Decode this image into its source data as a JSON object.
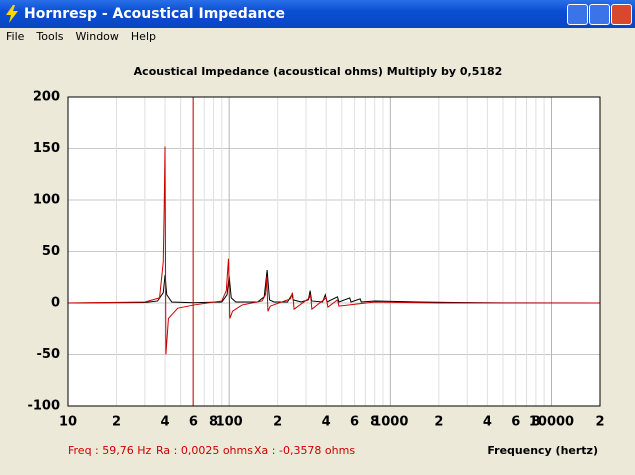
{
  "window": {
    "title": "Hornresp - Acoustical Impedance",
    "menu": [
      "File",
      "Tools",
      "Window",
      "Help"
    ]
  },
  "chart_data": {
    "type": "line",
    "title": "Acoustical Impedance (acoustical ohms)   Multiply by 0,5182",
    "xlabel": "Frequency (hertz)",
    "xscale": "log",
    "xlim": [
      10,
      20000
    ],
    "ylim": [
      -100,
      200
    ],
    "xticks": [
      10,
      {
        "value": 20,
        "label": "2"
      },
      {
        "value": 40,
        "label": "4"
      },
      {
        "value": 60,
        "label": "6"
      },
      {
        "value": 80,
        "label": "8"
      },
      100,
      {
        "value": 200,
        "label": "2"
      },
      {
        "value": 400,
        "label": "4"
      },
      {
        "value": 600,
        "label": "6"
      },
      {
        "value": 800,
        "label": "8"
      },
      1000,
      {
        "value": 2000,
        "label": "2"
      },
      {
        "value": 4000,
        "label": "4"
      },
      {
        "value": 6000,
        "label": "6"
      },
      {
        "value": 8000,
        "label": "8"
      },
      10000,
      {
        "value": 20000,
        "label": "2"
      }
    ],
    "xminor_ticks": [
      30,
      50,
      70,
      90,
      300,
      500,
      700,
      900,
      3000,
      5000,
      7000,
      9000
    ],
    "yticks": [
      200,
      150,
      100,
      50,
      0,
      -50,
      -100
    ],
    "grid": true,
    "cursor": 59.76,
    "cursor_color": "#cc0000",
    "series": [
      {
        "color": "#000000",
        "x": [
          10,
          30,
          36,
          39,
          40,
          41,
          44,
          60,
          90,
          97,
          100,
          103,
          110,
          150,
          165,
          172,
          178,
          190,
          230,
          245,
          250,
          280,
          310,
          318,
          325,
          380,
          395,
          405,
          470,
          480,
          560,
          570,
          650,
          660,
          800,
          1500,
          2500,
          5000,
          20000
        ],
        "values": [
          0,
          0.5,
          2,
          10,
          27,
          8,
          1,
          0.3,
          1,
          8,
          26,
          5,
          1,
          1,
          6,
          32,
          3,
          1,
          1,
          8,
          3,
          1,
          3,
          12,
          2,
          1,
          8,
          1,
          6,
          1,
          5,
          1,
          4,
          1,
          2,
          1,
          0.5,
          0.1,
          0
        ]
      },
      {
        "color": "#cc0000",
        "x": [
          10,
          30,
          37,
          39,
          39.5,
          40,
          40.5,
          42,
          48,
          60,
          90,
          96,
          99,
          101,
          105,
          120,
          160,
          168,
          171,
          174,
          180,
          240,
          247,
          253,
          315,
          320,
          326,
          400,
          410,
          470,
          480,
          800,
          2000,
          20000
        ],
        "values": [
          0,
          1,
          5,
          40,
          90,
          152,
          -50,
          -15,
          -5,
          -2,
          2,
          12,
          43,
          -15,
          -8,
          -2,
          2,
          8,
          25,
          -8,
          -3,
          4,
          10,
          -6,
          5,
          8,
          -6,
          5,
          -4,
          3,
          -3,
          1,
          0,
          0
        ]
      }
    ]
  },
  "status": {
    "freq": "Freq : 59,76 Hz",
    "ra": "Ra : 0,0025 ohms",
    "xa": "Xa : -0,3578 ohms"
  }
}
